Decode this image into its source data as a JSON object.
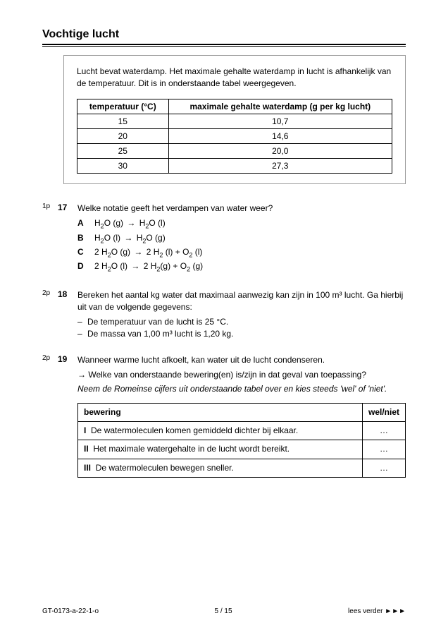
{
  "title": "Vochtige lucht",
  "info_text": "Lucht bevat waterdamp. Het maximale gehalte waterdamp in lucht is afhankelijk van de temperatuur. Dit is in onderstaande tabel weergegeven.",
  "data_table": {
    "col1_header": "temperatuur (°C)",
    "col2_header": "maximale gehalte waterdamp (g per kg lucht)",
    "rows": [
      {
        "t": "15",
        "v": "10,7"
      },
      {
        "t": "20",
        "v": "14,6"
      },
      {
        "t": "25",
        "v": "20,0"
      },
      {
        "t": "30",
        "v": "27,3"
      }
    ]
  },
  "q17": {
    "points": "1p",
    "num": "17",
    "text": "Welke notatie geeft het verdampen van water weer?",
    "opt_a_label": "A",
    "opt_b_label": "B",
    "opt_c_label": "C",
    "opt_d_label": "D"
  },
  "q18": {
    "points": "2p",
    "num": "18",
    "text": "Bereken het aantal kg water dat maximaal aanwezig kan zijn in 100 m³ lucht. Ga hierbij uit van de volgende gegevens:",
    "b1": "De temperatuur van de lucht is 25 °C.",
    "b2": "De massa van 1,00 m³ lucht is 1,20 kg."
  },
  "q19": {
    "points": "2p",
    "num": "19",
    "line1": "Wanneer warme lucht afkoelt, kan water uit de lucht condenseren.",
    "line2_prefix": "→  ",
    "line2": "Welke van onderstaande bewering(en) is/zijn in dat geval van toepassing?",
    "line3": "Neem de Romeinse cijfers uit onderstaande tabel over en kies steeds 'wel' of 'niet'.",
    "truth": {
      "col1": "bewering",
      "col2": "wel/niet",
      "r1_label": "I",
      "r1_text": "De watermoleculen komen gemiddeld dichter bij elkaar.",
      "r2_label": "II",
      "r2_text": "Het maximale watergehalte in de lucht wordt bereikt.",
      "r3_label": "III",
      "r3_text": "De watermoleculen bewegen sneller.",
      "dots": "…"
    }
  },
  "footer": {
    "left": "GT-0173-a-22-1-o",
    "center": "5 / 15",
    "right": "lees verder ►►►"
  },
  "colors": {
    "text": "#000000",
    "border": "#000000",
    "box_border": "#999999",
    "background": "#ffffff"
  }
}
